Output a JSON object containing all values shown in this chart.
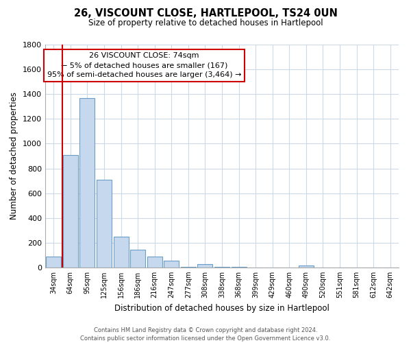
{
  "title": "26, VISCOUNT CLOSE, HARTLEPOOL, TS24 0UN",
  "subtitle": "Size of property relative to detached houses in Hartlepool",
  "xlabel": "Distribution of detached houses by size in Hartlepool",
  "ylabel": "Number of detached properties",
  "categories": [
    "34sqm",
    "64sqm",
    "95sqm",
    "125sqm",
    "156sqm",
    "186sqm",
    "216sqm",
    "247sqm",
    "277sqm",
    "308sqm",
    "338sqm",
    "368sqm",
    "399sqm",
    "429sqm",
    "460sqm",
    "490sqm",
    "520sqm",
    "551sqm",
    "581sqm",
    "612sqm",
    "642sqm"
  ],
  "values": [
    90,
    910,
    1370,
    710,
    250,
    145,
    90,
    55,
    5,
    30,
    5,
    5,
    0,
    0,
    0,
    15,
    0,
    0,
    0,
    0,
    0
  ],
  "bar_color": "#c5d8ed",
  "bar_edge_color": "#6a9ec8",
  "vline_color": "#cc0000",
  "ylim": [
    0,
    1800
  ],
  "yticks": [
    0,
    200,
    400,
    600,
    800,
    1000,
    1200,
    1400,
    1600,
    1800
  ],
  "annotation_title": "26 VISCOUNT CLOSE: 74sqm",
  "annotation_line1": "← 5% of detached houses are smaller (167)",
  "annotation_line2": "95% of semi-detached houses are larger (3,464) →",
  "annotation_box_color": "#ffffff",
  "annotation_box_edge": "#cc0000",
  "footer1": "Contains HM Land Registry data © Crown copyright and database right 2024.",
  "footer2": "Contains public sector information licensed under the Open Government Licence v3.0.",
  "background_color": "#ffffff",
  "grid_color": "#ccd9e8"
}
